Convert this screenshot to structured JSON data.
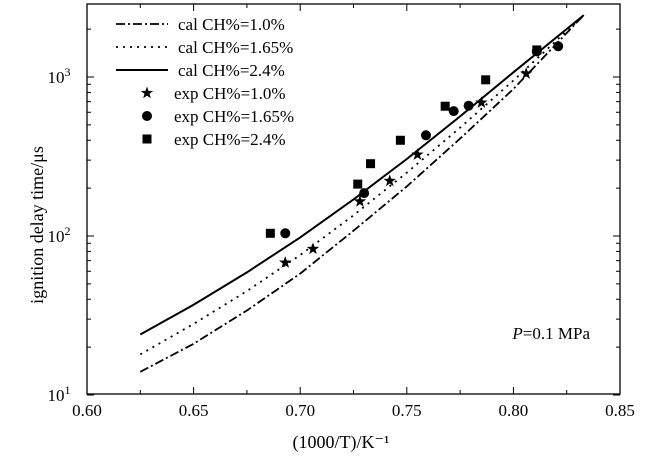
{
  "chart_data": {
    "type": "line",
    "title": "",
    "xlabel": "(1000/T)/K⁻¹",
    "ylabel": "ignition delay time/μs",
    "xlim": [
      0.6,
      0.85
    ],
    "ylim": [
      10,
      3000
    ],
    "yscale": "log",
    "grid": false,
    "legend_position": "top-left",
    "x_ticks": [
      {
        "value": 0.6,
        "label": "0.60"
      },
      {
        "value": 0.65,
        "label": "0.65"
      },
      {
        "value": 0.7,
        "label": "0.70"
      },
      {
        "value": 0.75,
        "label": "0.75"
      },
      {
        "value": 0.8,
        "label": "0.80"
      },
      {
        "value": 0.85,
        "label": "0.85"
      }
    ],
    "y_ticks": [
      {
        "value": 10,
        "base": "10",
        "exp": "1"
      },
      {
        "value": 100,
        "base": "10",
        "exp": "2"
      },
      {
        "value": 1000,
        "base": "10",
        "exp": "3"
      }
    ],
    "annotation": {
      "italic": "P",
      "text": "=0.1 MPa"
    },
    "series": [
      {
        "name": "cal CH%=1.0%",
        "kind": "line",
        "style": "dashdot",
        "x": [
          0.625,
          0.65,
          0.675,
          0.7,
          0.725,
          0.75,
          0.775,
          0.8,
          0.833
        ],
        "y": [
          14,
          21,
          34,
          58,
          108,
          205,
          410,
          840,
          2450
        ]
      },
      {
        "name": "cal CH%=1.65%",
        "kind": "line",
        "style": "dotted",
        "x": [
          0.625,
          0.65,
          0.675,
          0.7,
          0.725,
          0.75,
          0.775,
          0.8,
          0.833
        ],
        "y": [
          18,
          28,
          45,
          76,
          135,
          250,
          480,
          950,
          2450
        ]
      },
      {
        "name": "cal CH%=2.4%",
        "kind": "line",
        "style": "solid",
        "x": [
          0.625,
          0.65,
          0.675,
          0.7,
          0.725,
          0.75,
          0.775,
          0.8,
          0.833
        ],
        "y": [
          24,
          37,
          59,
          98,
          170,
          305,
          565,
          1070,
          2450
        ]
      },
      {
        "name": "exp CH%=1.0%",
        "kind": "scatter",
        "marker": "star",
        "x": [
          0.693,
          0.706,
          0.728,
          0.742,
          0.755,
          0.785,
          0.806
        ],
        "y": [
          68,
          83,
          165,
          222,
          325,
          690,
          1050
        ]
      },
      {
        "name": "exp CH%=1.65%",
        "kind": "scatter",
        "marker": "circle",
        "x": [
          0.693,
          0.73,
          0.759,
          0.772,
          0.779,
          0.811,
          0.821
        ],
        "y": [
          104,
          186,
          430,
          610,
          660,
          1450,
          1560
        ]
      },
      {
        "name": "exp CH%=2.4%",
        "kind": "scatter",
        "marker": "square",
        "x": [
          0.686,
          0.727,
          0.733,
          0.747,
          0.768,
          0.787,
          0.811
        ],
        "y": [
          104,
          212,
          285,
          400,
          655,
          960,
          1480
        ]
      }
    ]
  }
}
